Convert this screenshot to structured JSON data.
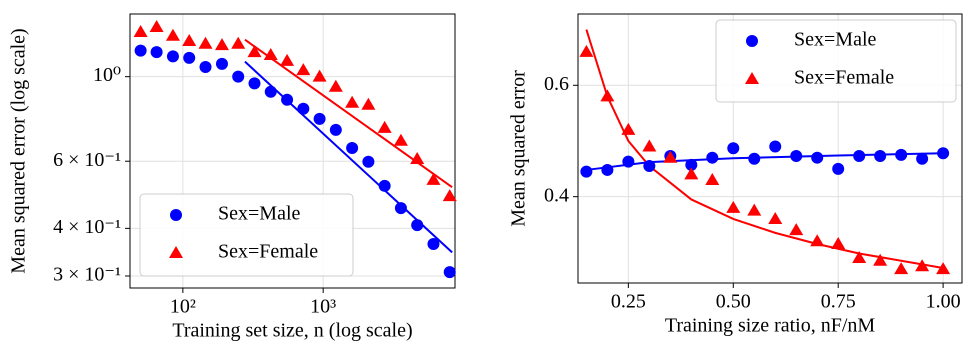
{
  "chart_data": [
    {
      "type": "scatter",
      "xscale": "log",
      "yscale": "log",
      "x_label": "Training set size, n (log scale)",
      "y_label": "Mean squared error (log scale)",
      "x": [
        50,
        65,
        85,
        111,
        145,
        190,
        248,
        324,
        423,
        553,
        722,
        943,
        1231,
        1608,
        2100,
        2743,
        3582,
        4678,
        6110,
        7979
      ],
      "series": [
        {
          "name": "Sex=Male",
          "color": "#0000ff",
          "marker": "circle",
          "values": [
            1.17,
            1.16,
            1.13,
            1.12,
            1.06,
            1.08,
            1.0,
            0.96,
            0.913,
            0.87,
            0.824,
            0.775,
            0.725,
            0.65,
            0.598,
            0.517,
            0.452,
            0.408,
            0.364,
            0.307
          ]
        },
        {
          "name": "Sex=Female",
          "color": "#ff0000",
          "marker": "triangle",
          "values": [
            1.31,
            1.35,
            1.28,
            1.24,
            1.22,
            1.21,
            1.22,
            1.16,
            1.14,
            1.1,
            1.04,
            1.0,
            0.941,
            0.854,
            0.844,
            0.734,
            0.679,
            0.608,
            0.536,
            0.486
          ]
        }
      ],
      "fits": [
        {
          "color": "#0000ff",
          "x": [
            277,
            8300
          ],
          "values": [
            1.095,
            0.346
          ]
        },
        {
          "color": "#ff0000",
          "x": [
            277,
            8300
          ],
          "values": [
            1.25,
            0.513
          ]
        }
      ],
      "xlim": [
        42,
        8700
      ],
      "ylim": [
        0.279,
        1.46
      ],
      "xticks": [
        {
          "value": 100,
          "label": "10²"
        },
        {
          "value": 1000,
          "label": "10³"
        }
      ],
      "yticks": [
        {
          "value": 0.3,
          "label": "3 × 10⁻¹"
        },
        {
          "value": 0.4,
          "label": "4 × 10⁻¹"
        },
        {
          "value": 0.6,
          "label": "6 × 10⁻¹"
        },
        {
          "value": 1,
          "label": "10⁰"
        }
      ],
      "grid": true,
      "legend": "lower-left"
    },
    {
      "type": "scatter",
      "xscale": "linear",
      "yscale": "linear",
      "x_label": "Training size ratio, nF/nM",
      "y_label": "Mean squared error",
      "x": [
        0.15,
        0.2,
        0.25,
        0.3,
        0.35,
        0.4,
        0.45,
        0.5,
        0.55,
        0.6,
        0.65,
        0.7,
        0.75,
        0.8,
        0.85,
        0.9,
        0.95,
        1.0
      ],
      "series": [
        {
          "name": "Sex=Male",
          "color": "#0000ff",
          "marker": "circle",
          "values": [
            0.445,
            0.448,
            0.463,
            0.455,
            0.473,
            0.457,
            0.47,
            0.487,
            0.468,
            0.49,
            0.473,
            0.47,
            0.45,
            0.473,
            0.473,
            0.475,
            0.468,
            0.478
          ]
        },
        {
          "name": "Sex=Female",
          "color": "#ff0000",
          "marker": "triangle",
          "values": [
            0.66,
            0.58,
            0.52,
            0.49,
            0.47,
            0.44,
            0.43,
            0.38,
            0.375,
            0.36,
            0.34,
            0.32,
            0.315,
            0.29,
            0.285,
            0.27,
            0.275,
            0.27
          ]
        }
      ],
      "fits": [
        {
          "color": "#0000ff",
          "x": [
            0.15,
            0.3,
            0.5,
            0.75,
            1.0
          ],
          "values": [
            0.448,
            0.462,
            0.469,
            0.474,
            0.478
          ]
        },
        {
          "color": "#ff0000",
          "x": [
            0.15,
            0.2,
            0.25,
            0.3,
            0.4,
            0.5,
            0.6,
            0.7,
            0.8,
            0.9,
            1.0
          ],
          "values": [
            0.7,
            0.58,
            0.5,
            0.455,
            0.395,
            0.36,
            0.335,
            0.315,
            0.298,
            0.285,
            0.272
          ]
        }
      ],
      "xlim": [
        0.13,
        1.045
      ],
      "ylim": [
        0.245,
        0.728
      ],
      "xticks": [
        0.25,
        {
          "value": 0.5,
          "label": "0.50"
        },
        0.75,
        {
          "value": 1.0,
          "label": "1.00"
        }
      ],
      "yticks": [
        0.4,
        0.6
      ],
      "grid": true,
      "legend": "upper-right"
    }
  ]
}
